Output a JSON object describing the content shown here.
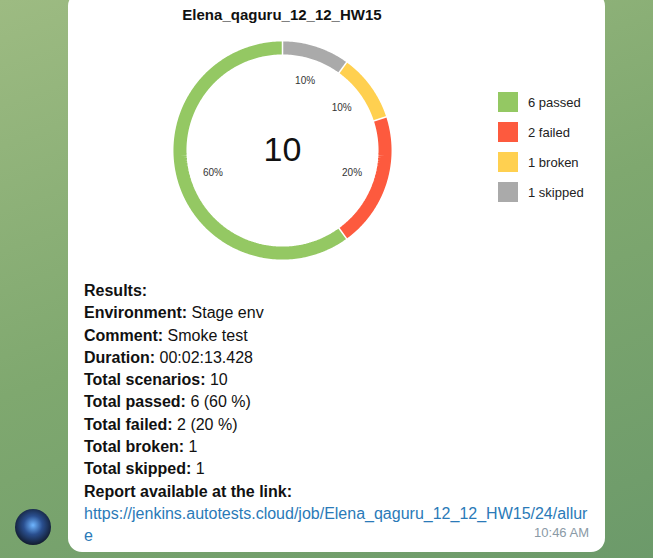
{
  "chart_data": {
    "type": "pie",
    "title": "Elena_qaguru_12_12_HW15",
    "categories": [
      "6 passed",
      "2 failed",
      "1 broken",
      "1 skipped"
    ],
    "values": [
      60,
      20,
      10,
      10
    ],
    "value_labels": [
      "60%",
      "20%",
      "10%",
      "10%"
    ],
    "colors": [
      "#94c863",
      "#fd5a3e",
      "#ffd050",
      "#aaaaaa"
    ],
    "total": 10,
    "data_labels": true,
    "legend": "right"
  },
  "message": {
    "results_title": "Results:",
    "fields": [
      {
        "label": "Environment:",
        "value": "Stage env"
      },
      {
        "label": "Comment:",
        "value": "Smoke test"
      },
      {
        "label": "Duration:",
        "value": "00:02:13.428"
      },
      {
        "label": "Total scenarios:",
        "value": "10"
      },
      {
        "label": "Total passed:",
        "value": "6 (60 %)"
      },
      {
        "label": "Total failed:",
        "value": "2 (20 %)"
      },
      {
        "label": "Total broken:",
        "value": "1"
      },
      {
        "label": "Total skipped:",
        "value": "1"
      }
    ],
    "link_label": "Report available at the link:",
    "link": "https://jenkins.autotests.cloud/job/Elena_qaguru_12_12_HW15/24/allure",
    "time": "10:46 AM"
  }
}
